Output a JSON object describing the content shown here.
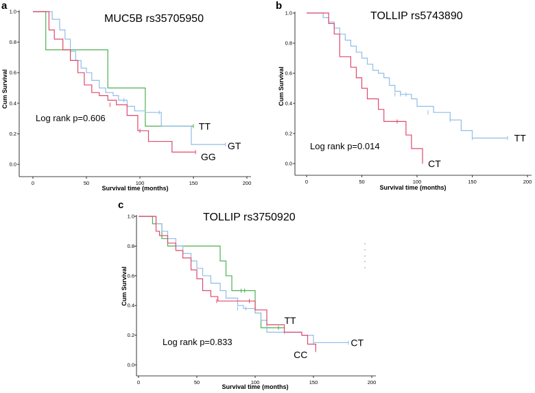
{
  "colors": {
    "TT": "#4caf50",
    "GT": "#8fbce8",
    "CT": "#8fbce8",
    "GG": "#e0476b",
    "CC": "#e0476b"
  },
  "chart_data": [
    {
      "type": "line",
      "panel": "a",
      "title": "MUC5B rs35705950",
      "xlabel": "Survival time (months)",
      "ylabel": "Cum Survival",
      "xlim": [
        0,
        200
      ],
      "ylim": [
        0,
        1
      ],
      "xticks": [
        "0",
        "50",
        "100",
        "150",
        "200"
      ],
      "yticks": [
        "0.0",
        "0.2",
        "0.4",
        "0.6",
        "0.8",
        "1.0"
      ],
      "annotation": "Log rank p=0.606",
      "series": [
        {
          "name": "TT",
          "color_key": "TT",
          "label_at": [
            155,
            0.25
          ],
          "x": [
            0,
            12,
            70,
            105,
            150
          ],
          "y": [
            1.0,
            0.75,
            0.5,
            0.25,
            0.25
          ],
          "censored": [
            [
              150,
              0.25
            ]
          ]
        },
        {
          "name": "GT",
          "color_key": "GT",
          "label_at": [
            182,
            0.12
          ],
          "x": [
            0,
            18,
            25,
            30,
            35,
            40,
            45,
            50,
            55,
            62,
            68,
            75,
            80,
            88,
            95,
            105,
            120,
            148,
            180
          ],
          "y": [
            1.0,
            0.95,
            0.88,
            0.82,
            0.74,
            0.68,
            0.63,
            0.6,
            0.55,
            0.5,
            0.47,
            0.45,
            0.42,
            0.38,
            0.35,
            0.34,
            0.25,
            0.13,
            0.13
          ],
          "censored": [
            [
              85,
              0.42
            ],
            [
              118,
              0.34
            ],
            [
              180,
              0.13
            ]
          ]
        },
        {
          "name": "GG",
          "color_key": "GG",
          "label_at": [
            157,
            0.05
          ],
          "x": [
            0,
            15,
            20,
            28,
            35,
            42,
            48,
            55,
            62,
            70,
            78,
            88,
            98,
            108,
            130,
            152
          ],
          "y": [
            1.0,
            0.88,
            0.82,
            0.75,
            0.68,
            0.6,
            0.52,
            0.47,
            0.45,
            0.42,
            0.39,
            0.32,
            0.22,
            0.15,
            0.08,
            0.08
          ],
          "censored": [
            [
              72,
              0.39
            ],
            [
              100,
              0.22
            ],
            [
              152,
              0.08
            ]
          ]
        }
      ]
    },
    {
      "type": "line",
      "panel": "b",
      "title": "TOLLIP rs5743890",
      "xlabel": "Survival time (months)",
      "ylabel": "Cum Survival",
      "xlim": [
        0,
        200
      ],
      "ylim": [
        0,
        1
      ],
      "xticks": [
        "0",
        "50",
        "100",
        "150",
        "200"
      ],
      "yticks": [
        "0.0",
        "0.2",
        "0.4",
        "0.6",
        "0.8",
        "1.0"
      ],
      "annotation": "Log rank p=0.014",
      "series": [
        {
          "name": "TT",
          "color_key": "CT",
          "label_at": [
            188,
            0.17
          ],
          "x": [
            0,
            15,
            20,
            25,
            30,
            35,
            40,
            45,
            50,
            55,
            60,
            65,
            70,
            75,
            80,
            85,
            95,
            100,
            115,
            130,
            140,
            150,
            182
          ],
          "y": [
            1.0,
            0.97,
            0.94,
            0.9,
            0.86,
            0.82,
            0.78,
            0.74,
            0.7,
            0.66,
            0.62,
            0.6,
            0.57,
            0.52,
            0.48,
            0.46,
            0.43,
            0.38,
            0.34,
            0.29,
            0.22,
            0.17,
            0.17
          ],
          "censored": [
            [
              80,
              0.46
            ],
            [
              85,
              0.46
            ],
            [
              90,
              0.46
            ],
            [
              110,
              0.34
            ],
            [
              130,
              0.29
            ],
            [
              150,
              0.17
            ],
            [
              182,
              0.17
            ]
          ]
        },
        {
          "name": "CT",
          "color_key": "CC",
          "label_at": [
            110,
            0.0
          ],
          "x": [
            0,
            20,
            25,
            30,
            40,
            45,
            50,
            55,
            65,
            70,
            90,
            95,
            105
          ],
          "y": [
            1.0,
            0.93,
            0.86,
            0.71,
            0.64,
            0.57,
            0.5,
            0.43,
            0.36,
            0.28,
            0.19,
            0.1,
            0.0
          ],
          "censored": [
            [
              82,
              0.28
            ]
          ]
        }
      ]
    },
    {
      "type": "line",
      "panel": "c",
      "title": "TOLLIP rs3750920",
      "xlabel": "Survival time (months)",
      "ylabel": "Cum Survival",
      "xlim": [
        0,
        200
      ],
      "ylim": [
        0,
        1
      ],
      "xticks": [
        "0",
        "50",
        "100",
        "150",
        "200"
      ],
      "yticks": [
        "0.0",
        "0.2",
        "0.4",
        "0.6",
        "0.8",
        "1.0"
      ],
      "annotation": "Log rank p=0.833",
      "series": [
        {
          "name": "TT",
          "color_key": "TT",
          "label_at": [
            125,
            0.3
          ],
          "x": [
            0,
            12,
            20,
            25,
            35,
            70,
            75,
            80,
            100,
            105,
            125
          ],
          "y": [
            1.0,
            0.95,
            0.85,
            0.8,
            0.8,
            0.7,
            0.6,
            0.5,
            0.35,
            0.25,
            0.25
          ],
          "censored": [
            [
              88,
              0.5
            ],
            [
              91,
              0.5
            ],
            [
              120,
              0.25
            ]
          ]
        },
        {
          "name": "CT",
          "color_key": "CT",
          "label_at": [
            182,
            0.15
          ],
          "x": [
            0,
            15,
            20,
            25,
            32,
            38,
            45,
            50,
            55,
            62,
            70,
            75,
            85,
            90,
            100,
            105,
            110,
            125,
            140,
            150,
            180
          ],
          "y": [
            1.0,
            0.95,
            0.9,
            0.85,
            0.8,
            0.75,
            0.7,
            0.65,
            0.6,
            0.55,
            0.5,
            0.45,
            0.4,
            0.38,
            0.35,
            0.3,
            0.22,
            0.22,
            0.2,
            0.15,
            0.15
          ],
          "censored": [
            [
              85,
              0.38
            ],
            [
              92,
              0.38
            ],
            [
              125,
              0.22
            ],
            [
              150,
              0.15
            ],
            [
              180,
              0.15
            ]
          ]
        },
        {
          "name": "CC",
          "color_key": "CC",
          "label_at": [
            133,
            0.07
          ],
          "x": [
            0,
            15,
            18,
            25,
            32,
            38,
            45,
            50,
            55,
            62,
            68,
            75,
            85,
            95,
            100,
            110,
            125,
            140,
            145,
            152
          ],
          "y": [
            1.0,
            0.9,
            0.87,
            0.82,
            0.77,
            0.72,
            0.64,
            0.58,
            0.5,
            0.46,
            0.43,
            0.43,
            0.43,
            0.43,
            0.37,
            0.27,
            0.22,
            0.2,
            0.14,
            0.1
          ],
          "censored": [
            [
              67,
              0.43
            ],
            [
              95,
              0.43
            ],
            [
              152,
              0.1
            ]
          ]
        }
      ]
    }
  ]
}
